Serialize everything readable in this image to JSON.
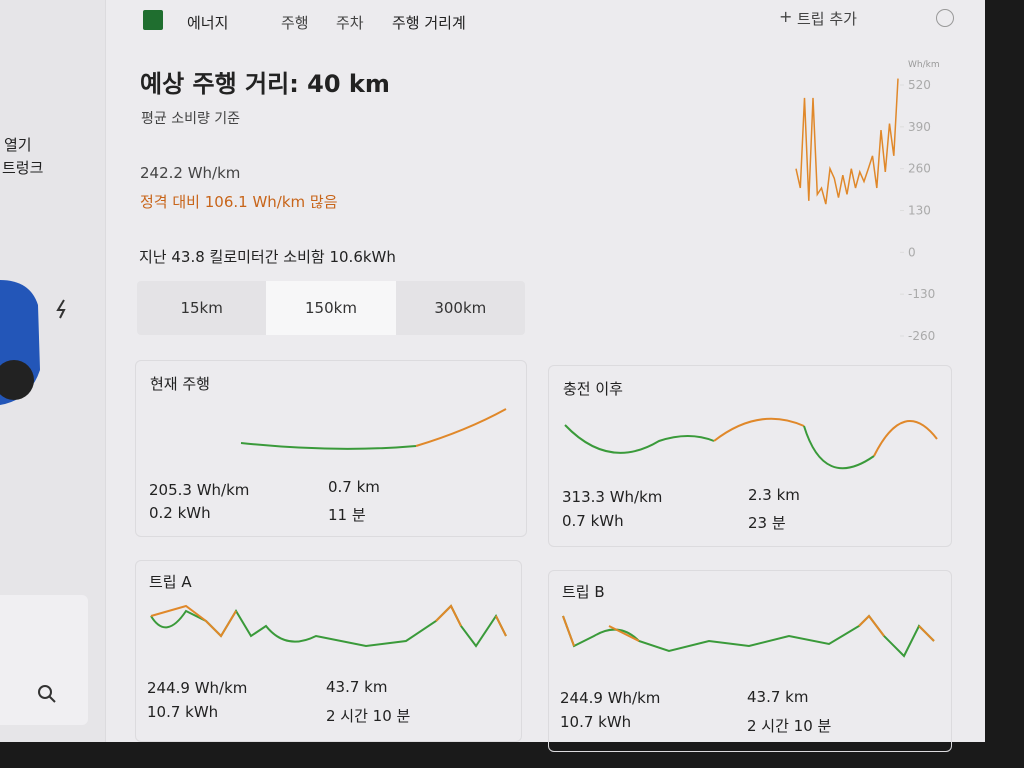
{
  "sidebar": {
    "items": [
      "열기",
      "트렁크"
    ]
  },
  "tabs": [
    "에너지",
    "주행",
    "주차",
    "주행 거리계"
  ],
  "add_trip": "트립 추가",
  "title": "예상 주행 거리: 40 km",
  "subtitle": "평균 소비량 기준",
  "consumption": "242.2 Wh/km",
  "comparison": "정격 대비 106.1 Wh/km 많음",
  "summary": "지난 43.8 킬로미터간 소비함 10.6kWh",
  "range_options": [
    "15km",
    "150km",
    "300km"
  ],
  "cards": [
    {
      "title": "현재 주행",
      "rate": "205.3 Wh/km",
      "energy": "0.2 kWh",
      "distance": "0.7 km",
      "duration": "11 분"
    },
    {
      "title": "충전 이후",
      "rate": "313.3 Wh/km",
      "energy": "0.7 kWh",
      "distance": "2.3 km",
      "duration": "23 분"
    },
    {
      "title": "트립 A",
      "rate": "244.9 Wh/km",
      "energy": "10.7 kWh",
      "distance": "43.7 km",
      "duration": "2 시간 10 분"
    },
    {
      "title": "트립 B",
      "rate": "244.9 Wh/km",
      "energy": "10.7 kWh",
      "distance": "43.7 km",
      "duration": "2 시간 10 분"
    }
  ],
  "chart_data": {
    "type": "line",
    "y_label": "Wh/km",
    "ylim": [
      -260,
      520
    ],
    "yticks": [
      520,
      390,
      260,
      130,
      0,
      -130,
      -260
    ],
    "series": [
      {
        "color": "#e0882a",
        "values": [
          260,
          200,
          480,
          160,
          480,
          180,
          200,
          150,
          260,
          230,
          170,
          240,
          180,
          260,
          200,
          250,
          220,
          260,
          300,
          200,
          380,
          250,
          400,
          300,
          540
        ]
      }
    ]
  }
}
